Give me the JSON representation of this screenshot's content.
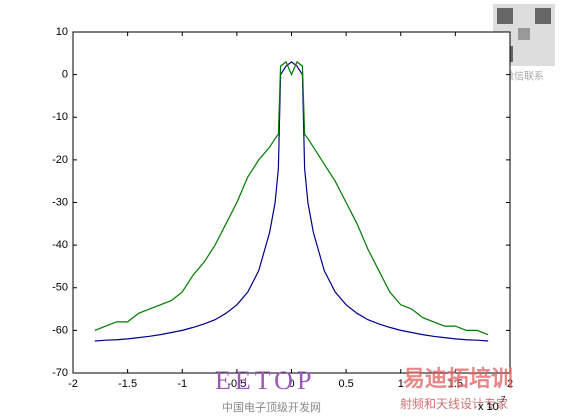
{
  "chart_data": {
    "type": "line",
    "x_exponent_base": "x 10",
    "x_exponent": "7",
    "x": [
      -1.8,
      -1.7,
      -1.6,
      -1.5,
      -1.4,
      -1.3,
      -1.2,
      -1.1,
      -1.0,
      -0.9,
      -0.8,
      -0.7,
      -0.6,
      -0.5,
      -0.4,
      -0.3,
      -0.2,
      -0.15,
      -0.12,
      -0.1,
      -0.05,
      0,
      0.05,
      0.1,
      0.12,
      0.15,
      0.2,
      0.3,
      0.4,
      0.5,
      0.6,
      0.7,
      0.8,
      0.9,
      1.0,
      1.1,
      1.2,
      1.3,
      1.4,
      1.5,
      1.6,
      1.7,
      1.8
    ],
    "series": [
      {
        "color": "#00008b",
        "values": [
          -62.5,
          -62.3,
          -62.2,
          -62,
          -61.7,
          -61.4,
          -61,
          -60.5,
          -60,
          -59.3,
          -58.5,
          -57.5,
          -56,
          -54,
          -51,
          -46,
          -37,
          -30,
          -22,
          0,
          2,
          3,
          2,
          0,
          -22,
          -30,
          -37,
          -46,
          -51,
          -54,
          -56,
          -57.5,
          -58.5,
          -59.3,
          -60,
          -60.5,
          -61,
          -61.4,
          -61.7,
          -62,
          -62.2,
          -62.3,
          -62.5
        ]
      },
      {
        "color": "#007a00",
        "values": [
          -60,
          -59,
          -58,
          -58,
          -56,
          -55,
          -54,
          -53,
          -51,
          -47,
          -44,
          -40,
          -35,
          -30,
          -24,
          -20,
          -17,
          -15,
          -14,
          2,
          3,
          0,
          3,
          2,
          -14,
          -15,
          -17,
          -21,
          -25,
          -30,
          -35,
          -41,
          -46,
          -51,
          -54,
          -55,
          -57,
          -58,
          -59,
          -59,
          -60,
          -60,
          -61
        ]
      }
    ],
    "xlim": [
      -2,
      2
    ],
    "xticks": [
      -2,
      -1.5,
      -1,
      -0.5,
      0,
      0.5,
      1,
      1.5,
      2
    ],
    "ylim": [
      -70,
      10
    ],
    "yticks": [
      -70,
      -60,
      -50,
      -40,
      -30,
      -20,
      -10,
      0,
      10
    ],
    "grid": false
  },
  "watermark": {
    "site": "EETOP",
    "site_cn": "中国电子顶级开发网",
    "brand": "易迪拓培训",
    "slogan": "射频和天线设计专家",
    "wechat": "微信联系"
  }
}
